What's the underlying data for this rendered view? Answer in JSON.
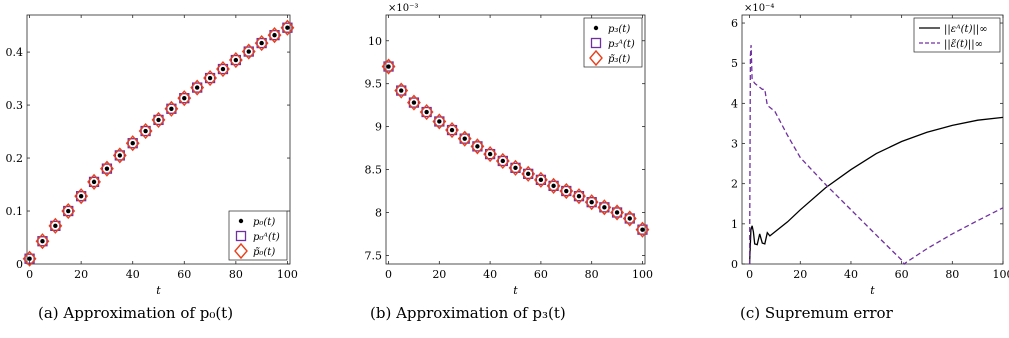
{
  "colors": {
    "exact": "#000000",
    "approx": "#7030A0",
    "tilde": "#E8401C",
    "axis": "#262626",
    "background": "#ffffff"
  },
  "chart_data": [
    {
      "type": "scatter",
      "caption": "(a) Approximation of p₀(t)",
      "xlabel": "t",
      "ylabel": "",
      "xlim": [
        -1,
        101
      ],
      "ylim": [
        0,
        0.47
      ],
      "xticks": [
        0,
        20,
        40,
        60,
        80,
        100
      ],
      "yticks": [
        0,
        0.1,
        0.2,
        0.3,
        0.4
      ],
      "xtick_labels": [
        "0",
        "20",
        "40",
        "60",
        "80",
        "100"
      ],
      "ytick_labels": [
        "0",
        "0.1",
        "0.2",
        "0.3",
        "0.4"
      ],
      "exponent_label": "",
      "legend": {
        "position": "bottom-right",
        "entries": [
          "p₀(t)",
          "p₀ᴬ(t)",
          "p̃₀(t)"
        ]
      },
      "x": [
        0,
        5,
        10,
        15,
        20,
        25,
        30,
        35,
        40,
        45,
        50,
        55,
        60,
        65,
        70,
        75,
        80,
        85,
        90,
        95,
        100
      ],
      "series": [
        {
          "name": "p₀(t)",
          "marker": "dot",
          "values": [
            0.01,
            0.043,
            0.072,
            0.1,
            0.128,
            0.155,
            0.18,
            0.205,
            0.228,
            0.251,
            0.272,
            0.293,
            0.313,
            0.333,
            0.351,
            0.368,
            0.385,
            0.401,
            0.417,
            0.432,
            0.446
          ]
        },
        {
          "name": "p₀ᴬ(t)",
          "marker": "square",
          "values": [
            0.01,
            0.043,
            0.072,
            0.1,
            0.128,
            0.155,
            0.18,
            0.205,
            0.228,
            0.251,
            0.272,
            0.293,
            0.313,
            0.333,
            0.351,
            0.368,
            0.385,
            0.401,
            0.417,
            0.432,
            0.446
          ]
        },
        {
          "name": "p̃₀(t)",
          "marker": "diamond",
          "values": [
            0.01,
            0.043,
            0.072,
            0.1,
            0.128,
            0.155,
            0.18,
            0.205,
            0.228,
            0.251,
            0.272,
            0.293,
            0.313,
            0.333,
            0.351,
            0.368,
            0.385,
            0.401,
            0.417,
            0.432,
            0.446
          ]
        }
      ]
    },
    {
      "type": "scatter",
      "caption": "(b) Approximation of p₃(t)",
      "xlabel": "t",
      "ylabel": "",
      "xlim": [
        -1,
        101
      ],
      "ylim": [
        7.4,
        10.3
      ],
      "xticks": [
        0,
        20,
        40,
        60,
        80,
        100
      ],
      "yticks": [
        7.5,
        8,
        8.5,
        9,
        9.5,
        10
      ],
      "xtick_labels": [
        "0",
        "20",
        "40",
        "60",
        "80",
        "100"
      ],
      "ytick_labels": [
        "7.5",
        "8",
        "8.5",
        "9",
        "9.5",
        "10"
      ],
      "exponent_label": "×10⁻³",
      "legend": {
        "position": "top-right",
        "entries": [
          "p₃(t)",
          "p₃ᴬ(t)",
          "p̃₃(t)"
        ]
      },
      "x": [
        0,
        5,
        10,
        15,
        20,
        25,
        30,
        35,
        40,
        45,
        50,
        55,
        60,
        65,
        70,
        75,
        80,
        85,
        90,
        95,
        100
      ],
      "series": [
        {
          "name": "p₃(t)",
          "marker": "dot",
          "values": [
            9.7,
            9.42,
            9.28,
            9.17,
            9.06,
            8.96,
            8.86,
            8.77,
            8.68,
            8.6,
            8.52,
            8.45,
            8.38,
            8.31,
            8.25,
            8.19,
            8.12,
            8.06,
            8.0,
            7.93,
            7.8
          ]
        },
        {
          "name": "p₃ᴬ(t)",
          "marker": "square",
          "values": [
            9.7,
            9.42,
            9.28,
            9.17,
            9.06,
            8.96,
            8.86,
            8.77,
            8.68,
            8.6,
            8.52,
            8.45,
            8.38,
            8.31,
            8.25,
            8.19,
            8.12,
            8.06,
            8.0,
            7.93,
            7.8
          ]
        },
        {
          "name": "p̃₃(t)",
          "marker": "diamond",
          "values": [
            9.7,
            9.42,
            9.28,
            9.17,
            9.06,
            8.96,
            8.86,
            8.77,
            8.68,
            8.6,
            8.52,
            8.45,
            8.38,
            8.31,
            8.25,
            8.19,
            8.12,
            8.06,
            8.0,
            7.93,
            7.8
          ]
        }
      ]
    },
    {
      "type": "line",
      "caption": "(c) Supremum error",
      "xlabel": "t",
      "ylabel": "",
      "xlim": [
        -3,
        100
      ],
      "ylim": [
        0,
        6.2
      ],
      "xticks": [
        0,
        20,
        40,
        60,
        80,
        100
      ],
      "yticks": [
        0,
        1,
        2,
        3,
        4,
        5,
        6
      ],
      "xtick_labels": [
        "0",
        "20",
        "40",
        "60",
        "80",
        "100"
      ],
      "ytick_labels": [
        "0",
        "1",
        "2",
        "3",
        "4",
        "5",
        "6"
      ],
      "exponent_label": "×10⁻⁴",
      "legend": {
        "position": "top-right",
        "entries": [
          "||εᴬ(t)||∞",
          "||ε̃(t)||∞"
        ]
      },
      "series": [
        {
          "name": "||εᴬ(t)||∞",
          "style": "solid",
          "x": [
            0,
            0.5,
            1,
            1.5,
            2,
            3,
            4,
            5,
            6,
            7,
            8,
            10,
            15,
            20,
            30,
            40,
            50,
            60,
            70,
            80,
            90,
            100
          ],
          "values": [
            0,
            0.85,
            0.95,
            0.8,
            0.5,
            0.48,
            0.75,
            0.52,
            0.5,
            0.78,
            0.7,
            0.8,
            1.05,
            1.35,
            1.9,
            2.35,
            2.75,
            3.05,
            3.28,
            3.45,
            3.58,
            3.65
          ]
        },
        {
          "name": "||ε̃(t)||∞",
          "style": "dashed",
          "x": [
            0,
            0.3,
            0.6,
            1.0,
            1.5,
            2,
            3,
            4,
            5,
            6,
            7,
            8,
            10,
            15,
            20,
            30,
            40,
            50,
            60,
            61,
            62,
            70,
            80,
            90,
            100
          ],
          "values": [
            0,
            5.2,
            5.45,
            4.6,
            4.55,
            4.5,
            4.45,
            4.4,
            4.35,
            4.35,
            3.95,
            3.9,
            3.8,
            3.2,
            2.65,
            1.98,
            1.35,
            0.72,
            0.1,
            0.0,
            0.05,
            0.38,
            0.75,
            1.08,
            1.4
          ]
        }
      ]
    }
  ]
}
